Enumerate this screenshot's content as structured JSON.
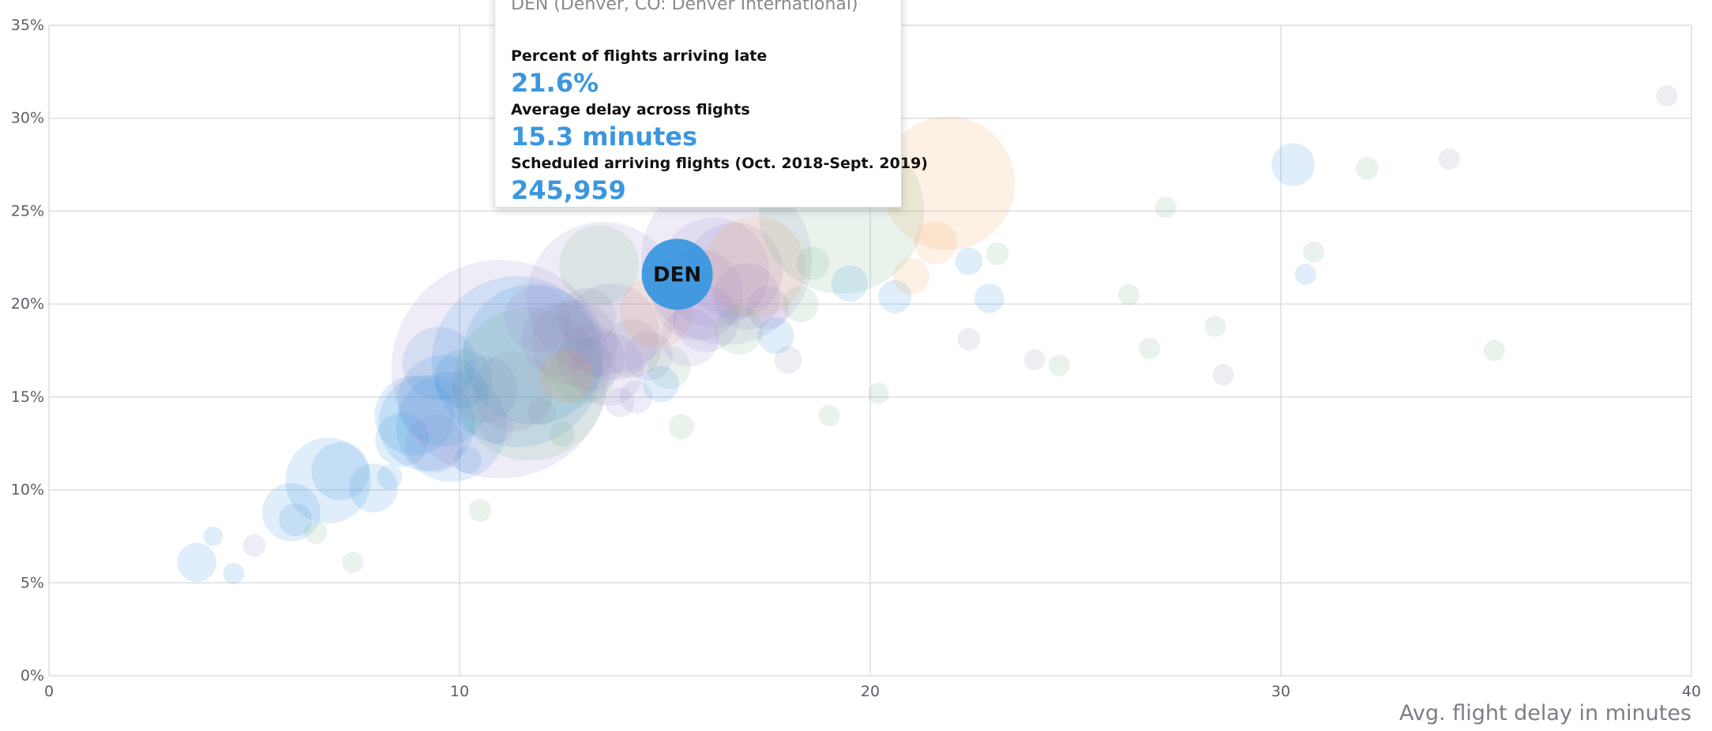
{
  "chart_data": {
    "type": "scatter",
    "xlabel": "Avg. flight delay in minutes",
    "ylabel": "",
    "xlim": [
      0,
      40
    ],
    "ylim": [
      0,
      35
    ],
    "x_ticks": [
      "0",
      "10",
      "20",
      "30",
      "40"
    ],
    "y_ticks": [
      "0%",
      "5%",
      "10%",
      "15%",
      "20%",
      "25%",
      "30%",
      "35%"
    ],
    "grid": true,
    "highlight": {
      "label": "DEN",
      "x": 15.3,
      "y": 21.6,
      "flights": 245959,
      "color": "#3b97de"
    },
    "points": [
      {
        "x": 3.6,
        "y": 6.1,
        "s": 12000,
        "c": "blue"
      },
      {
        "x": 4.5,
        "y": 5.5,
        "s": 2500,
        "c": "blue"
      },
      {
        "x": 4.0,
        "y": 7.5,
        "s": 2000,
        "c": "blue"
      },
      {
        "x": 5.0,
        "y": 7.0,
        "s": 3000,
        "c": "purple"
      },
      {
        "x": 5.9,
        "y": 8.8,
        "s": 30000,
        "c": "blue"
      },
      {
        "x": 6.0,
        "y": 8.4,
        "s": 8000,
        "c": "blue"
      },
      {
        "x": 6.5,
        "y": 7.7,
        "s": 3000,
        "c": "green"
      },
      {
        "x": 6.8,
        "y": 10.5,
        "s": 70000,
        "c": "blue"
      },
      {
        "x": 7.1,
        "y": 11.0,
        "s": 30000,
        "c": "blue"
      },
      {
        "x": 7.4,
        "y": 6.1,
        "s": 2500,
        "c": "green"
      },
      {
        "x": 7.9,
        "y": 10.1,
        "s": 20000,
        "c": "blue"
      },
      {
        "x": 8.3,
        "y": 10.7,
        "s": 4000,
        "c": "blue"
      },
      {
        "x": 8.6,
        "y": 12.7,
        "s": 25000,
        "c": "blue"
      },
      {
        "x": 8.9,
        "y": 14.0,
        "s": 60000,
        "c": "blue"
      },
      {
        "x": 9.2,
        "y": 13.6,
        "s": 90000,
        "c": "blue"
      },
      {
        "x": 9.4,
        "y": 12.5,
        "s": 30000,
        "c": "purple"
      },
      {
        "x": 9.6,
        "y": 14.8,
        "s": 80000,
        "c": "blue"
      },
      {
        "x": 9.8,
        "y": 13.4,
        "s": 120000,
        "c": "blue"
      },
      {
        "x": 10.2,
        "y": 11.6,
        "s": 5000,
        "c": "blue"
      },
      {
        "x": 9.5,
        "y": 16.8,
        "s": 50000,
        "c": "blue"
      },
      {
        "x": 10.1,
        "y": 16.0,
        "s": 30000,
        "c": "blue"
      },
      {
        "x": 10.6,
        "y": 15.4,
        "s": 40000,
        "c": "purple"
      },
      {
        "x": 11.0,
        "y": 16.5,
        "s": 500000,
        "c": "purple"
      },
      {
        "x": 11.4,
        "y": 16.9,
        "s": 300000,
        "c": "blue"
      },
      {
        "x": 11.8,
        "y": 17.3,
        "s": 200000,
        "c": "blue"
      },
      {
        "x": 11.7,
        "y": 15.7,
        "s": 240000,
        "c": "green"
      },
      {
        "x": 11.3,
        "y": 15.3,
        "s": 60000,
        "c": "gray"
      },
      {
        "x": 11.9,
        "y": 19.2,
        "s": 40000,
        "c": "purple"
      },
      {
        "x": 12.4,
        "y": 18.1,
        "s": 50000,
        "c": "purple"
      },
      {
        "x": 12.8,
        "y": 17.9,
        "s": 70000,
        "c": "gray"
      },
      {
        "x": 13.2,
        "y": 17.1,
        "s": 40000,
        "c": "purple"
      },
      {
        "x": 13.0,
        "y": 16.4,
        "s": 40000,
        "c": "green"
      },
      {
        "x": 13.6,
        "y": 16.5,
        "s": 50000,
        "c": "purple"
      },
      {
        "x": 13.7,
        "y": 18.5,
        "s": 90000,
        "c": "purple"
      },
      {
        "x": 13.5,
        "y": 20.3,
        "s": 240000,
        "c": "purple"
      },
      {
        "x": 13.4,
        "y": 22.1,
        "s": 60000,
        "c": "green"
      },
      {
        "x": 14.2,
        "y": 17.6,
        "s": 30000,
        "c": "gray"
      },
      {
        "x": 14.6,
        "y": 17.2,
        "s": 20000,
        "c": "purple"
      },
      {
        "x": 14.8,
        "y": 19.6,
        "s": 50000,
        "c": "orange"
      },
      {
        "x": 15.1,
        "y": 16.6,
        "s": 15000,
        "c": "green"
      },
      {
        "x": 15.6,
        "y": 18.2,
        "s": 30000,
        "c": "purple"
      },
      {
        "x": 15.8,
        "y": 20.5,
        "s": 80000,
        "c": "purple"
      },
      {
        "x": 16.2,
        "y": 21.7,
        "s": 120000,
        "c": "purple"
      },
      {
        "x": 16.5,
        "y": 22.4,
        "s": 300000,
        "c": "purple"
      },
      {
        "x": 16.7,
        "y": 21.8,
        "s": 90000,
        "c": "purple"
      },
      {
        "x": 17.0,
        "y": 20.4,
        "s": 40000,
        "c": "purple"
      },
      {
        "x": 17.2,
        "y": 22.0,
        "s": 100000,
        "c": "orange"
      },
      {
        "x": 17.7,
        "y": 18.3,
        "s": 10000,
        "c": "blue"
      },
      {
        "x": 18.3,
        "y": 20.0,
        "s": 10000,
        "c": "green"
      },
      {
        "x": 18.6,
        "y": 22.2,
        "s": 8000,
        "c": "green"
      },
      {
        "x": 19.3,
        "y": 25.0,
        "s": 280000,
        "c": "green"
      },
      {
        "x": 19.5,
        "y": 21.1,
        "s": 10000,
        "c": "blue"
      },
      {
        "x": 20.6,
        "y": 20.4,
        "s": 8000,
        "c": "blue"
      },
      {
        "x": 21.0,
        "y": 21.5,
        "s": 10000,
        "c": "orange"
      },
      {
        "x": 21.6,
        "y": 23.3,
        "s": 15000,
        "c": "orange"
      },
      {
        "x": 21.9,
        "y": 26.5,
        "s": 180000,
        "c": "orange"
      },
      {
        "x": 22.4,
        "y": 22.3,
        "s": 5000,
        "c": "blue"
      },
      {
        "x": 22.9,
        "y": 20.3,
        "s": 6000,
        "c": "blue"
      },
      {
        "x": 22.4,
        "y": 18.1,
        "s": 3000,
        "c": "gray"
      },
      {
        "x": 24.6,
        "y": 16.7,
        "s": 2500,
        "c": "green"
      },
      {
        "x": 26.3,
        "y": 20.5,
        "s": 2500,
        "c": "green"
      },
      {
        "x": 26.8,
        "y": 17.6,
        "s": 2500,
        "c": "green"
      },
      {
        "x": 27.2,
        "y": 25.2,
        "s": 2500,
        "c": "green"
      },
      {
        "x": 30.3,
        "y": 27.5,
        "s": 15000,
        "c": "blue"
      },
      {
        "x": 32.1,
        "y": 27.3,
        "s": 3000,
        "c": "green"
      },
      {
        "x": 34.1,
        "y": 27.8,
        "s": 2500,
        "c": "gray"
      },
      {
        "x": 35.2,
        "y": 17.5,
        "s": 2500,
        "c": "green"
      },
      {
        "x": 39.4,
        "y": 31.2,
        "s": 2500,
        "c": "gray"
      },
      {
        "x": 14.3,
        "y": 15.0,
        "s": 8000,
        "c": "purple"
      },
      {
        "x": 12.0,
        "y": 14.2,
        "s": 5000,
        "c": "gray"
      },
      {
        "x": 13.9,
        "y": 14.7,
        "s": 6000,
        "c": "purple"
      },
      {
        "x": 12.5,
        "y": 13.0,
        "s": 4000,
        "c": "green"
      },
      {
        "x": 16.0,
        "y": 19.2,
        "s": 40000,
        "c": "purple"
      },
      {
        "x": 16.8,
        "y": 18.6,
        "s": 20000,
        "c": "green"
      },
      {
        "x": 17.5,
        "y": 19.8,
        "s": 15000,
        "c": "purple"
      },
      {
        "x": 14.9,
        "y": 15.7,
        "s": 10000,
        "c": "blue"
      },
      {
        "x": 13.1,
        "y": 19.3,
        "s": 30000,
        "c": "gray"
      },
      {
        "x": 12.6,
        "y": 16.1,
        "s": 25000,
        "c": "orange"
      },
      {
        "x": 10.9,
        "y": 13.4,
        "s": 8000,
        "c": "purple"
      },
      {
        "x": 15.4,
        "y": 13.4,
        "s": 4000,
        "c": "green"
      },
      {
        "x": 10.5,
        "y": 8.9,
        "s": 3000,
        "c": "green"
      },
      {
        "x": 18.0,
        "y": 17.0,
        "s": 5000,
        "c": "gray"
      },
      {
        "x": 19.0,
        "y": 14.0,
        "s": 2500,
        "c": "green"
      },
      {
        "x": 20.2,
        "y": 15.2,
        "s": 2500,
        "c": "green"
      },
      {
        "x": 23.1,
        "y": 22.7,
        "s": 3000,
        "c": "green"
      },
      {
        "x": 24.0,
        "y": 17.0,
        "s": 2500,
        "c": "gray"
      },
      {
        "x": 28.4,
        "y": 18.8,
        "s": 2500,
        "c": "green"
      },
      {
        "x": 30.6,
        "y": 21.6,
        "s": 2500,
        "c": "blue"
      },
      {
        "x": 30.8,
        "y": 22.8,
        "s": 2500,
        "c": "green"
      },
      {
        "x": 28.6,
        "y": 16.2,
        "s": 2500,
        "c": "gray"
      }
    ]
  },
  "tooltip": {
    "airport": "DEN (Denver, CO: Denver International)",
    "metrics": [
      {
        "label": "Percent of flights arriving late",
        "value": "21.6%"
      },
      {
        "label": "Average delay across flights",
        "value": "15.3 minutes"
      },
      {
        "label": "Scheduled arriving flights (Oct. 2018-Sept. 2019)",
        "value": "245,959"
      }
    ]
  },
  "palette": {
    "blue": "#3b97de",
    "purple": "#9a8bd0",
    "green": "#74b38a",
    "orange": "#f0a35a",
    "gray": "#8e97a6",
    "grid": "#dcdde0",
    "focus_text": "#111111"
  }
}
